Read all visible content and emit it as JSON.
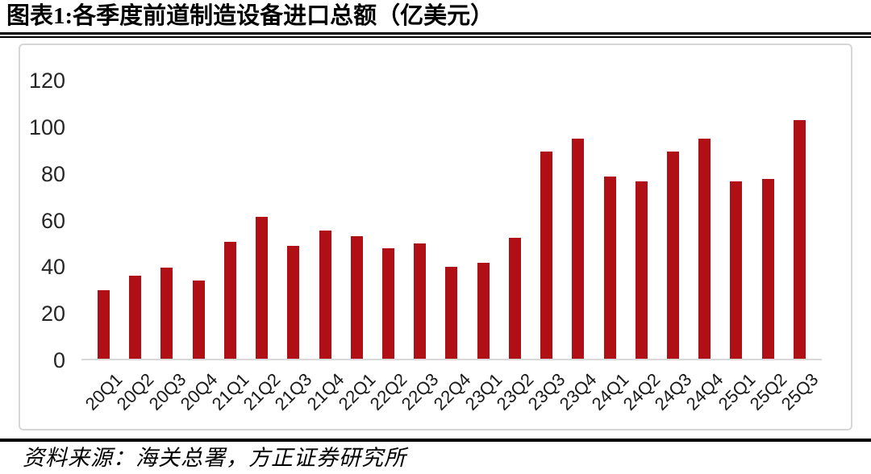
{
  "header": {
    "title": "图表1:各季度前道制造设备进口总额（亿美元）"
  },
  "footer": {
    "source": "资料来源：海关总署，方正证券研究所"
  },
  "colors": {
    "bar": "#B01015",
    "baseline": "#D9D9D9",
    "card_border": "#D6D6D6",
    "rule": "#000000",
    "y_label": "#262626",
    "x_label": "#1A1A1A"
  },
  "chart_data": {
    "type": "bar",
    "title": "各季度前道制造设备进口总额（亿美元）",
    "unit": "亿美元",
    "categories": [
      "20Q1",
      "20Q2",
      "20Q3",
      "20Q4",
      "21Q1",
      "21Q2",
      "21Q3",
      "21Q4",
      "22Q1",
      "22Q2",
      "22Q3",
      "22Q4",
      "23Q1",
      "23Q2",
      "23Q3",
      "23Q4",
      "24Q1",
      "24Q2",
      "24Q3",
      "24Q4",
      "25Q1",
      "25Q2",
      "25Q3"
    ],
    "values": [
      29.5,
      35.5,
      39,
      33.5,
      50,
      61,
      48.5,
      55,
      52.5,
      47.5,
      49.5,
      39.5,
      41,
      52,
      89,
      94.5,
      78,
      76,
      89,
      94.5,
      76,
      77,
      102.5
    ],
    "xlabel": "",
    "ylabel": "",
    "ylim": [
      0,
      120
    ],
    "yticks": [
      0,
      20,
      40,
      60,
      80,
      100,
      120
    ],
    "grid": false,
    "legend_position": "none",
    "bar_color": "#B01015"
  }
}
